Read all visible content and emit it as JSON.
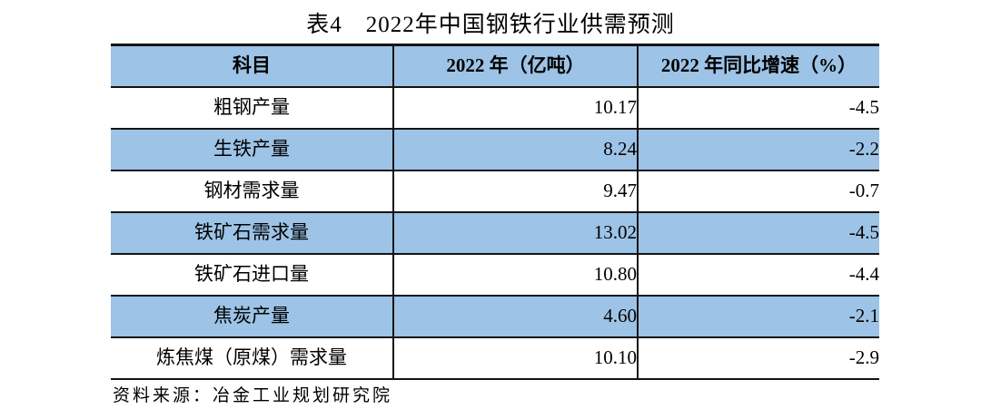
{
  "title": "表4　2022年中国钢铁行业供需预测",
  "table": {
    "headers": [
      "科目",
      "2022 年（亿吨）",
      "2022 年同比增速（%）"
    ],
    "rows": [
      {
        "item": "粗钢产量",
        "value": "10.17",
        "growth": "-4.5"
      },
      {
        "item": "生铁产量",
        "value": "8.24",
        "growth": "-2.2"
      },
      {
        "item": "钢材需求量",
        "value": "9.47",
        "growth": "-0.7"
      },
      {
        "item": "铁矿石需求量",
        "value": "13.02",
        "growth": "-4.5"
      },
      {
        "item": "铁矿石进口量",
        "value": "10.80",
        "growth": "-4.4"
      },
      {
        "item": "焦炭产量",
        "value": "4.60",
        "growth": "-2.1"
      },
      {
        "item": "炼焦煤（原煤）需求量",
        "value": "10.10",
        "growth": "-2.9"
      }
    ]
  },
  "source": "资料来源：冶金工业规划研究院",
  "colors": {
    "header_bg": "#9dc3e6",
    "stripe_bg": "#9dc3e6",
    "border_color": "#141414",
    "text_color": "#000000",
    "page_bg": "#ffffff"
  }
}
